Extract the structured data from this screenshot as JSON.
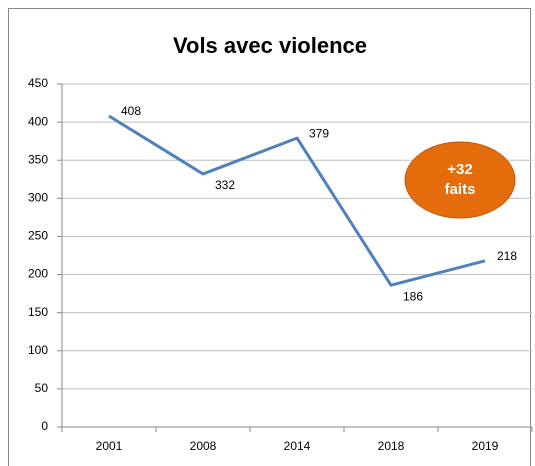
{
  "chart_data": {
    "type": "line",
    "title": "Vols avec violence",
    "categories": [
      "2001",
      "2008",
      "2014",
      "2018",
      "2019"
    ],
    "series": [
      {
        "name": "Vols avec violence",
        "color": "#4f81bd",
        "values": [
          408,
          332,
          379,
          186,
          218
        ]
      }
    ],
    "ylim": [
      0,
      450
    ],
    "yticks": [
      0,
      50,
      100,
      150,
      200,
      250,
      300,
      350,
      400,
      450
    ],
    "grid": true,
    "annotation": [
      "+32",
      "faits"
    ],
    "annotation_color": "#e46c0a"
  }
}
